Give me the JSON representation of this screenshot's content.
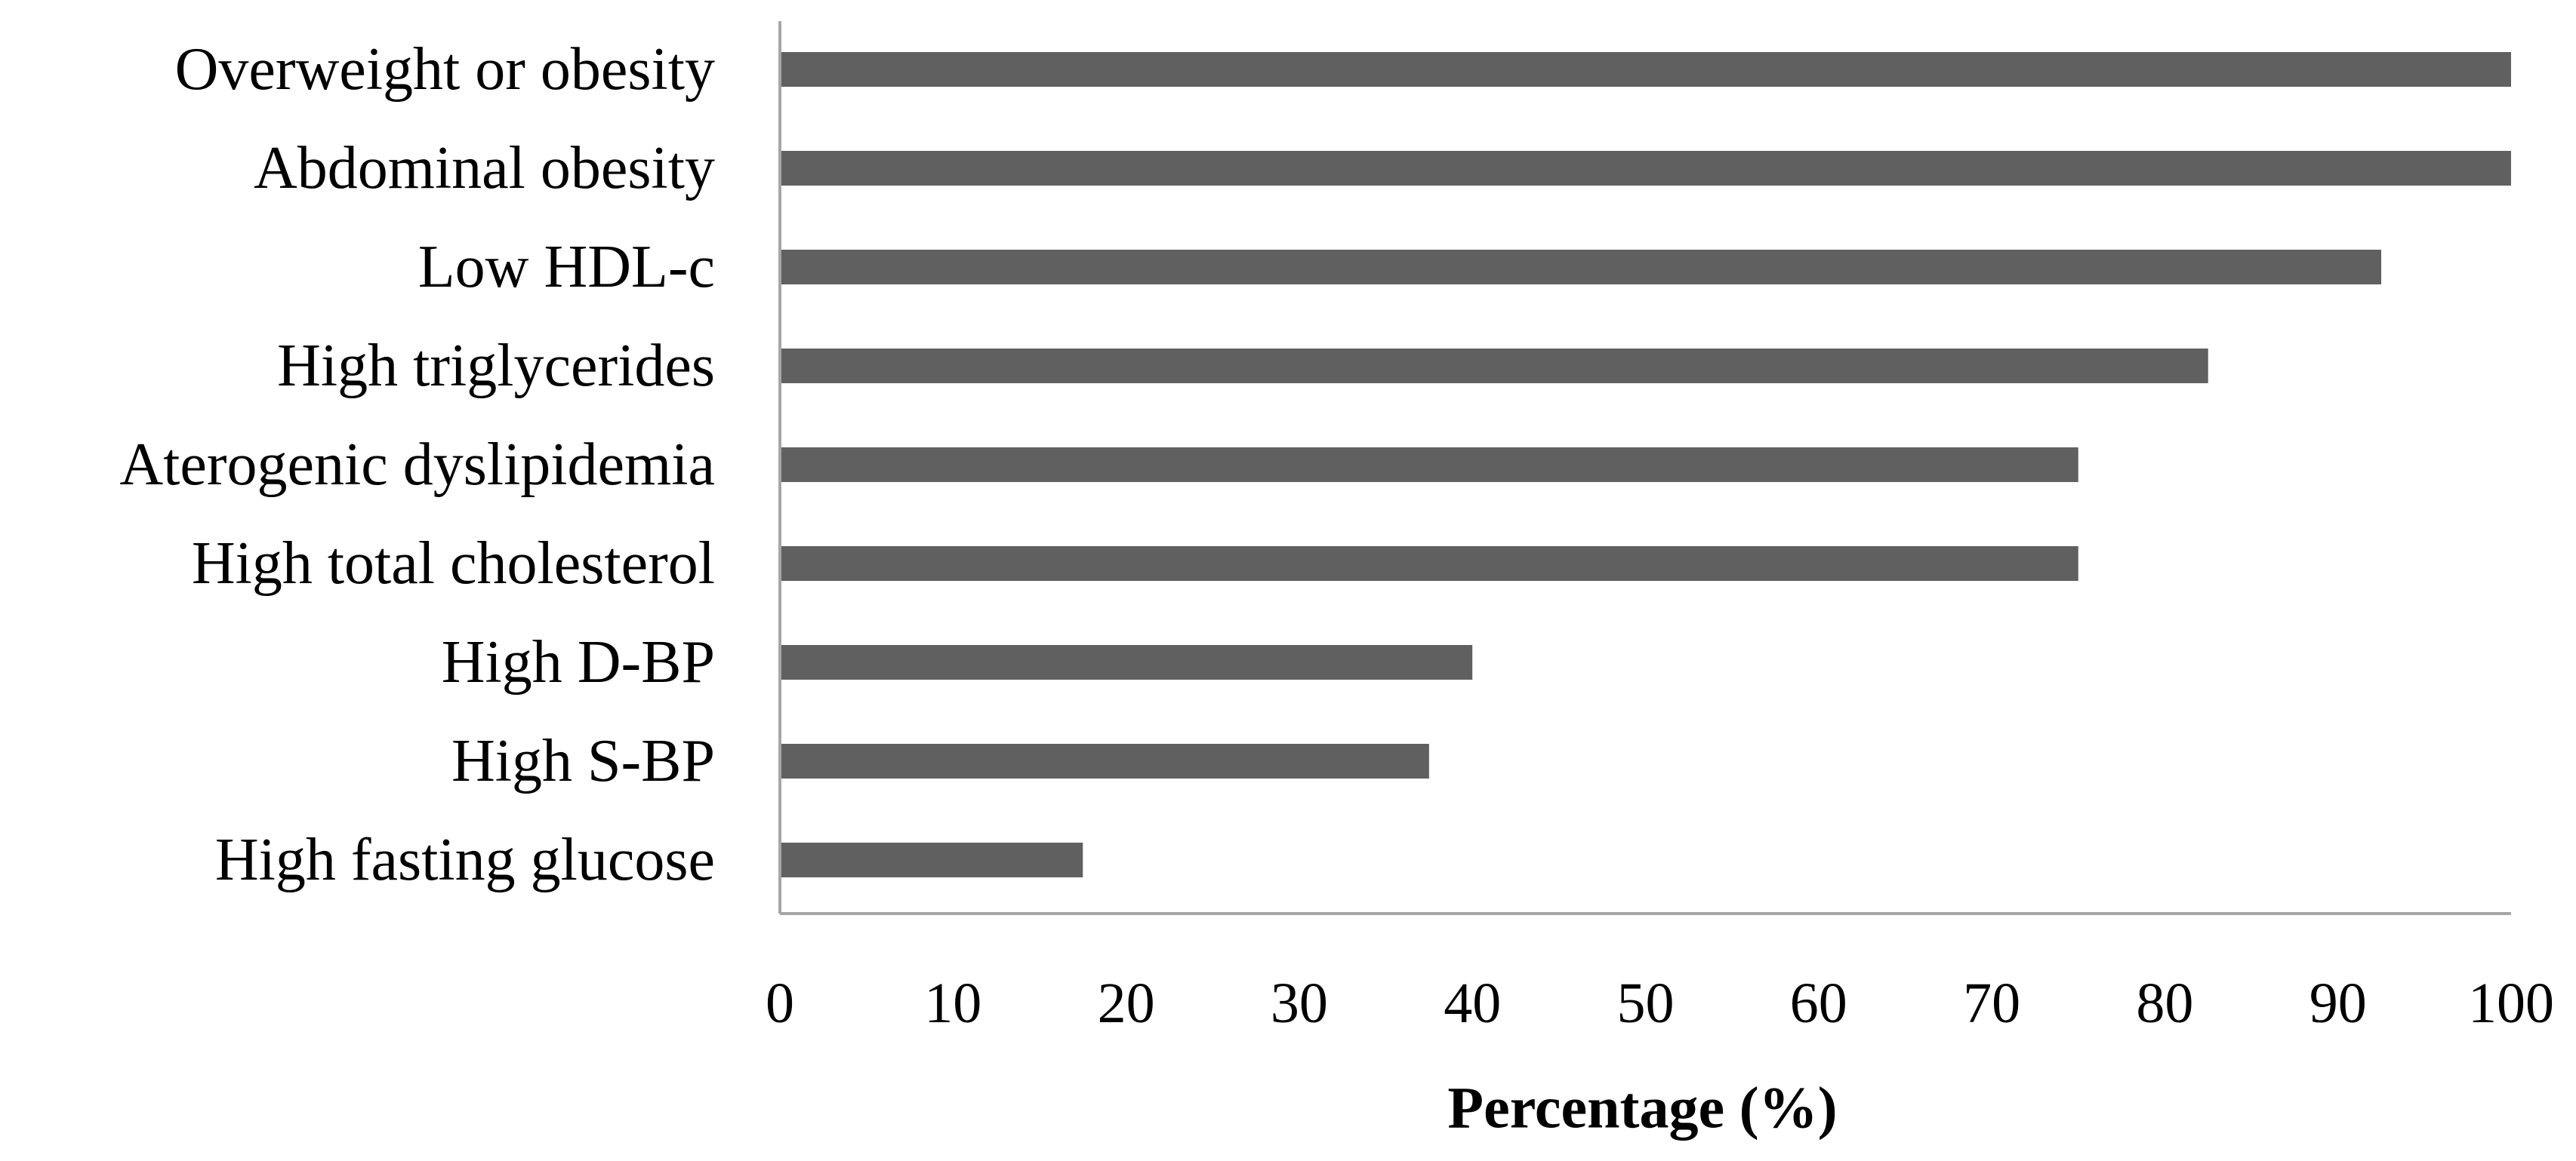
{
  "chart_data": {
    "type": "bar",
    "orientation": "horizontal",
    "title": "",
    "xlabel": "Percentage (%)",
    "ylabel": "",
    "categories": [
      "Overweight or obesity",
      "Abdominal obesity",
      "Low HDL-c",
      "High triglycerides",
      "Aterogenic dyslipidemia",
      "High total cholesterol",
      "High D-BP",
      "High S-BP",
      "High fasting glucose"
    ],
    "values": [
      100,
      100,
      92.5,
      82.5,
      75,
      75,
      40,
      37.5,
      17.5
    ],
    "xlim": [
      0,
      100
    ],
    "xticks": [
      0,
      10,
      20,
      30,
      40,
      50,
      60,
      70,
      80,
      90,
      100
    ],
    "grid": false,
    "legend": "none",
    "bar_color": "#606060",
    "axis_color": "#a6a6a6"
  }
}
